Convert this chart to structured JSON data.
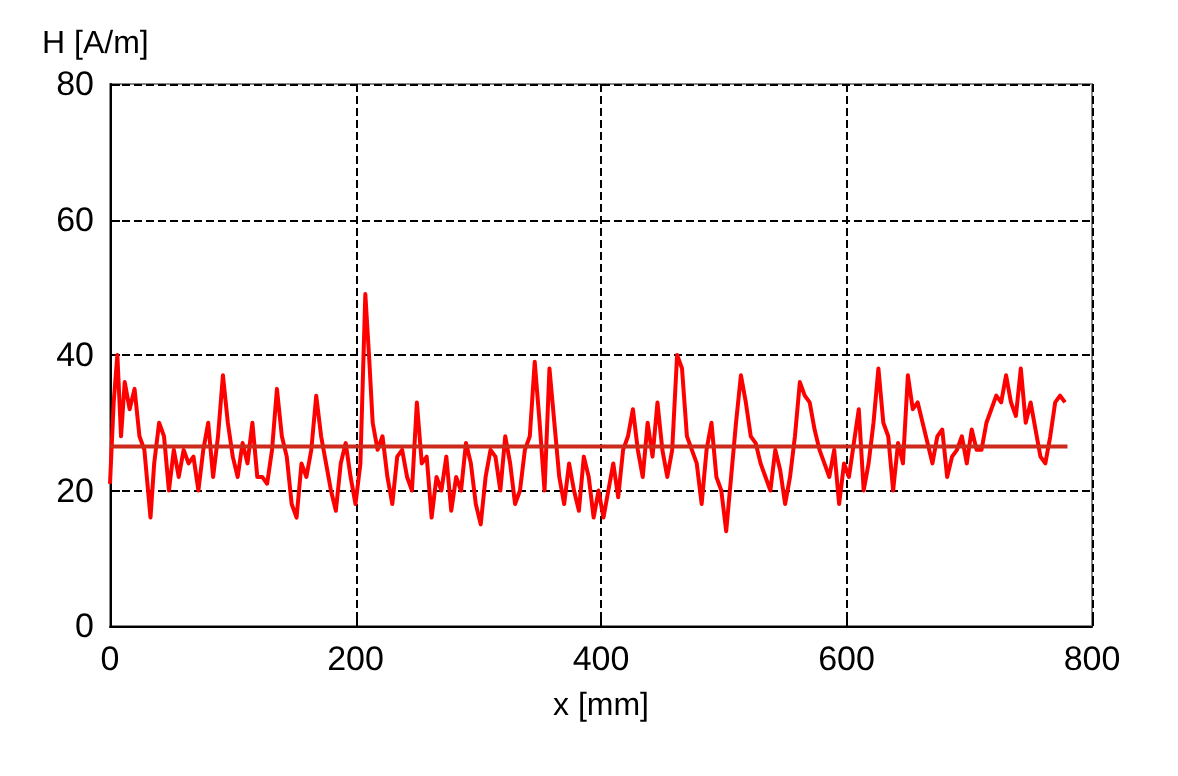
{
  "chart_data": {
    "type": "line",
    "xlabel": "x [mm]",
    "ylabel": "H [A/m]",
    "xlim": [
      0,
      800
    ],
    "xticks": [
      0,
      200,
      400,
      600,
      800
    ],
    "ylim": [
      0,
      80
    ],
    "yticks": [
      0,
      20,
      40,
      60,
      80
    ],
    "grid": true,
    "marker": "none",
    "series": [
      {
        "color": "#ff0000",
        "x": [
          0,
          3,
          6,
          9,
          12,
          16,
          20,
          24,
          28,
          31,
          33,
          36,
          40,
          44,
          48,
          52,
          56,
          60,
          64,
          68,
          72,
          76,
          80,
          84,
          88,
          92,
          96,
          100,
          104,
          108,
          112,
          116,
          120,
          124,
          128,
          132,
          136,
          140,
          144,
          148,
          152,
          156,
          160,
          164,
          168,
          172,
          176,
          180,
          184,
          188,
          192,
          196,
          200,
          204,
          208,
          211,
          214,
          218,
          222,
          226,
          230,
          234,
          238,
          242,
          246,
          250,
          254,
          258,
          262,
          266,
          270,
          274,
          278,
          282,
          286,
          290,
          294,
          298,
          302,
          306,
          310,
          314,
          318,
          322,
          326,
          330,
          334,
          338,
          342,
          346,
          350,
          354,
          358,
          362,
          366,
          370,
          374,
          378,
          382,
          386,
          390,
          394,
          398,
          402,
          406,
          410,
          414,
          418,
          422,
          426,
          430,
          434,
          438,
          442,
          446,
          450,
          454,
          458,
          462,
          466,
          470,
          474,
          478,
          482,
          486,
          490,
          494,
          498,
          502,
          506,
          510,
          514,
          518,
          522,
          526,
          530,
          534,
          538,
          542,
          546,
          550,
          554,
          558,
          562,
          566,
          570,
          574,
          578,
          582,
          586,
          590,
          594,
          598,
          602,
          606,
          610,
          614,
          618,
          622,
          626,
          630,
          634,
          638,
          642,
          646,
          650,
          654,
          658,
          662,
          666,
          670,
          674,
          678,
          682,
          686,
          690,
          694,
          698,
          702,
          706,
          710,
          714,
          718,
          722,
          726,
          730,
          734,
          738,
          742,
          746,
          750,
          754,
          758,
          762,
          766,
          770,
          774,
          778
        ],
        "values": [
          21,
          33,
          40,
          28,
          36,
          32,
          35,
          28,
          26,
          20,
          16,
          24,
          30,
          28,
          20,
          26,
          22,
          26,
          24,
          25,
          20,
          26,
          30,
          22,
          28,
          37,
          30,
          25,
          22,
          27,
          24,
          30,
          22,
          22,
          21,
          26,
          35,
          28,
          25,
          18,
          16,
          24,
          22,
          26,
          34,
          28,
          24,
          20,
          17,
          24,
          27,
          22,
          18,
          24,
          49,
          40,
          30,
          26,
          28,
          22,
          18,
          25,
          26,
          22,
          20,
          33,
          24,
          25,
          16,
          22,
          20,
          25,
          17,
          22,
          20,
          27,
          24,
          18,
          15,
          22,
          26,
          25,
          20,
          28,
          24,
          18,
          20,
          26,
          28,
          39,
          30,
          20,
          38,
          30,
          22,
          18,
          24,
          20,
          17,
          25,
          22,
          16,
          20,
          16,
          20,
          24,
          19,
          26,
          28,
          32,
          26,
          22,
          30,
          25,
          33,
          26,
          22,
          26,
          40,
          38,
          28,
          26,
          24,
          18,
          26,
          30,
          22,
          20,
          14,
          22,
          30,
          37,
          33,
          28,
          27,
          24,
          22,
          20,
          26,
          23,
          18,
          22,
          28,
          36,
          34,
          33,
          29,
          26,
          24,
          22,
          26,
          18,
          24,
          22,
          27,
          32,
          20,
          24,
          30,
          38,
          30,
          28,
          20,
          27,
          24,
          37,
          32,
          33,
          30,
          27,
          24,
          28,
          29,
          22,
          25,
          26,
          28,
          24,
          29,
          26,
          26,
          30,
          32,
          34,
          33,
          37,
          33,
          31,
          38,
          30,
          33,
          29,
          25,
          24,
          28,
          33,
          34,
          33
        ]
      },
      {
        "color": "#cc2a1a",
        "x": [
          0,
          780
        ],
        "values": [
          26.5,
          26.5
        ]
      }
    ]
  }
}
